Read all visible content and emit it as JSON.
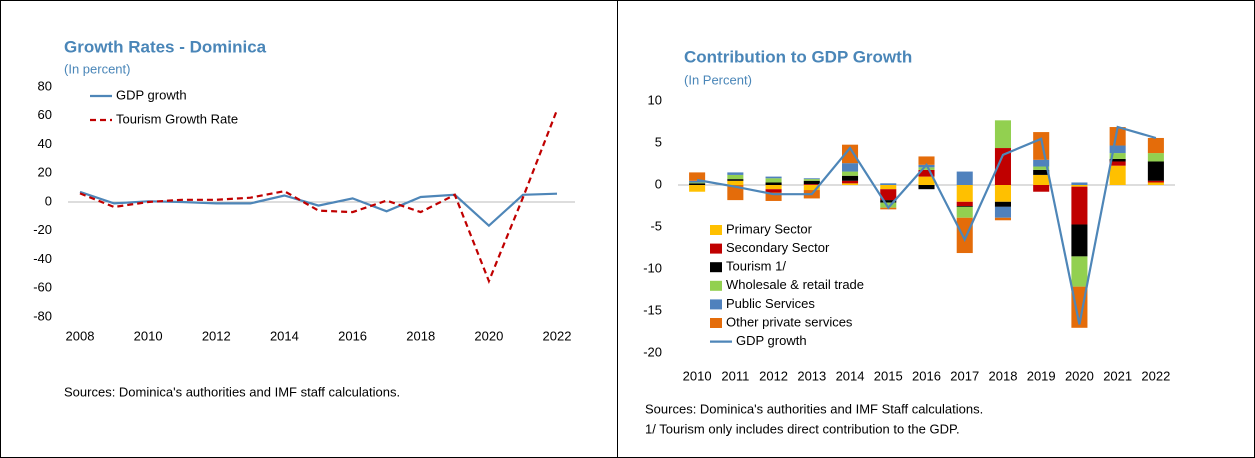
{
  "chart_data": [
    {
      "type": "line",
      "title": "Growth Rates - Dominica",
      "subtitle": "(In percent)",
      "source": "Sources: Dominica's authorities and IMF staff calculations.",
      "x": [
        2008,
        2009,
        2010,
        2011,
        2012,
        2013,
        2014,
        2015,
        2016,
        2017,
        2018,
        2019,
        2020,
        2021,
        2022
      ],
      "xlim": [
        2008,
        2022
      ],
      "xticks": [
        2008,
        2010,
        2012,
        2014,
        2016,
        2018,
        2020,
        2022
      ],
      "ylim": [
        -80,
        80
      ],
      "yticks": [
        -80,
        -60,
        -40,
        -20,
        0,
        20,
        40,
        60,
        80
      ],
      "grid": false,
      "legend": "top-left",
      "series": [
        {
          "name": "GDP growth",
          "color": "#4e86b8",
          "style": "solid",
          "values": [
            7,
            -1,
            0.5,
            0,
            -1,
            -1,
            4.5,
            -2.5,
            2.5,
            -6.5,
            3.5,
            5,
            -16.5,
            5,
            5.8
          ]
        },
        {
          "name": "Tourism Growth Rate",
          "color": "#c00000",
          "style": "dashed",
          "values": [
            6,
            -3.5,
            0,
            1.5,
            1.5,
            3,
            7.5,
            -6,
            -7,
            1,
            -7,
            5,
            -55,
            3,
            64
          ]
        }
      ]
    },
    {
      "type": "bar",
      "stacked": true,
      "title": "Contribution to GDP Growth",
      "subtitle": "(In Percent)",
      "source": "Sources: Dominica's authorities and IMF Staff calculations.",
      "note": "1/ Tourism only includes direct contribution to the GDP.",
      "categories": [
        "2010",
        "2011",
        "2012",
        "2013",
        "2014",
        "2015",
        "2016",
        "2017",
        "2018",
        "2019",
        "2020",
        "2021",
        "2022"
      ],
      "ylim": [
        -20,
        10
      ],
      "yticks": [
        -20,
        -15,
        -10,
        -5,
        0,
        5,
        10
      ],
      "grid": false,
      "legend": "bottom-left",
      "series": [
        {
          "name": "Primary Sector",
          "color": "#ffc000",
          "values": [
            -0.8,
            0.5,
            -0.5,
            -0.6,
            0.2,
            -0.5,
            1.0,
            -2.0,
            -2.0,
            1.2,
            -0.2,
            2.3,
            0.3
          ]
        },
        {
          "name": "Secondary Sector",
          "color": "#c00000",
          "values": [
            0,
            0,
            -0.4,
            0.1,
            0.3,
            -1.3,
            0.8,
            -0.5,
            4.4,
            -0.8,
            -4.5,
            0.5,
            0.2
          ]
        },
        {
          "name": "Tourism 1/",
          "color": "#000000",
          "values": [
            0.2,
            0.2,
            0.3,
            0.4,
            0.6,
            -0.3,
            -0.5,
            -0.1,
            -0.6,
            0.6,
            -3.8,
            0.3,
            2.3
          ]
        },
        {
          "name": "Wholesale & retail trade",
          "color": "#92d050",
          "values": [
            0.1,
            0.5,
            0.5,
            0.2,
            0.5,
            -0.6,
            0.3,
            -1.3,
            3.3,
            0.4,
            -3.6,
            0.7,
            1.0
          ]
        },
        {
          "name": "Public Services",
          "color": "#4f81bd",
          "values": [
            0.2,
            0.3,
            0.2,
            0.1,
            1.0,
            0.2,
            0.3,
            1.6,
            -1.3,
            0.8,
            0.3,
            0.9,
            0
          ]
        },
        {
          "name": "Other private services",
          "color": "#e46c0a",
          "values": [
            1.0,
            -1.8,
            -1.0,
            -1.0,
            2.2,
            -0.2,
            1.0,
            -4.2,
            -0.3,
            3.3,
            -4.9,
            2.2,
            1.8
          ]
        },
        {
          "name": "GDP growth",
          "color": "#4e86b8",
          "type": "line",
          "values": [
            0.6,
            -0.2,
            -1.1,
            -1.1,
            4.4,
            -2.7,
            2.4,
            -6.5,
            3.6,
            5.5,
            -16.6,
            6.9,
            5.6
          ]
        }
      ]
    }
  ]
}
